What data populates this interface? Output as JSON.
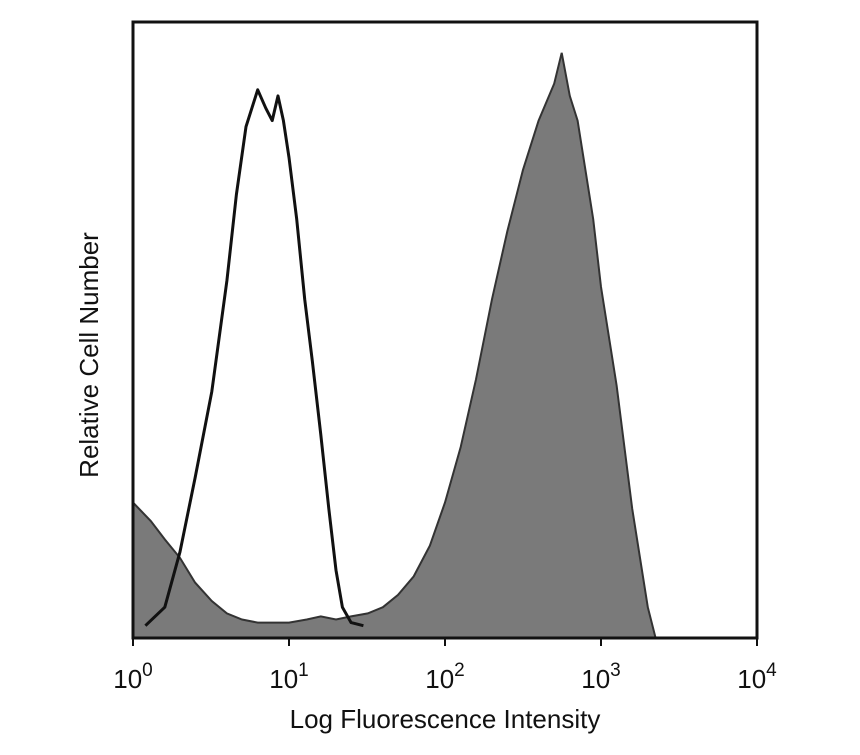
{
  "chart_data": {
    "type": "area",
    "title": "",
    "xlabel": "Log Fluorescence Intensity",
    "ylabel": "Relative Cell Number",
    "x_scale": "log",
    "xlim": [
      1,
      10000
    ],
    "ylim": [
      0,
      100
    ],
    "grid": false,
    "legend": "none",
    "x_ticks": [
      {
        "value": 1,
        "base": "10",
        "exp": "0"
      },
      {
        "value": 10,
        "base": "10",
        "exp": "1"
      },
      {
        "value": 100,
        "base": "10",
        "exp": "2"
      },
      {
        "value": 1000,
        "base": "10",
        "exp": "3"
      },
      {
        "value": 10000,
        "base": "10",
        "exp": "4"
      }
    ],
    "series": [
      {
        "style": "filled",
        "color": "#7a7a7a",
        "points": [
          [
            1.0,
            22
          ],
          [
            1.3,
            19
          ],
          [
            1.6,
            16
          ],
          [
            2.0,
            13
          ],
          [
            2.5,
            9
          ],
          [
            3.2,
            6
          ],
          [
            4.0,
            4
          ],
          [
            5.0,
            3
          ],
          [
            6.3,
            2.5
          ],
          [
            8.0,
            2.5
          ],
          [
            10,
            2.5
          ],
          [
            13,
            3
          ],
          [
            16,
            3.5
          ],
          [
            20,
            3
          ],
          [
            25,
            3.5
          ],
          [
            32,
            4
          ],
          [
            40,
            5
          ],
          [
            50,
            7
          ],
          [
            63,
            10
          ],
          [
            80,
            15
          ],
          [
            100,
            22
          ],
          [
            126,
            31
          ],
          [
            158,
            42
          ],
          [
            200,
            55
          ],
          [
            251,
            66
          ],
          [
            316,
            76
          ],
          [
            398,
            84
          ],
          [
            501,
            90
          ],
          [
            560,
            95
          ],
          [
            631,
            88
          ],
          [
            708,
            84
          ],
          [
            794,
            76
          ],
          [
            891,
            68
          ],
          [
            1000,
            57
          ],
          [
            1259,
            41
          ],
          [
            1585,
            21
          ],
          [
            1995,
            5
          ],
          [
            2239,
            0
          ]
        ]
      },
      {
        "style": "outline",
        "color": "#111111",
        "points": [
          [
            1.2,
            2
          ],
          [
            1.6,
            5
          ],
          [
            2.0,
            14
          ],
          [
            2.5,
            26
          ],
          [
            3.2,
            40
          ],
          [
            4.0,
            58
          ],
          [
            4.6,
            72
          ],
          [
            5.3,
            83
          ],
          [
            6.3,
            89
          ],
          [
            7.1,
            86
          ],
          [
            7.8,
            84
          ],
          [
            8.5,
            88
          ],
          [
            9.2,
            84
          ],
          [
            10,
            78
          ],
          [
            11.2,
            68
          ],
          [
            12.6,
            55
          ],
          [
            14.1,
            45
          ],
          [
            16,
            33
          ],
          [
            18,
            21
          ],
          [
            20,
            11
          ],
          [
            22,
            5
          ],
          [
            25,
            2.5
          ],
          [
            30,
            2
          ]
        ]
      }
    ]
  }
}
